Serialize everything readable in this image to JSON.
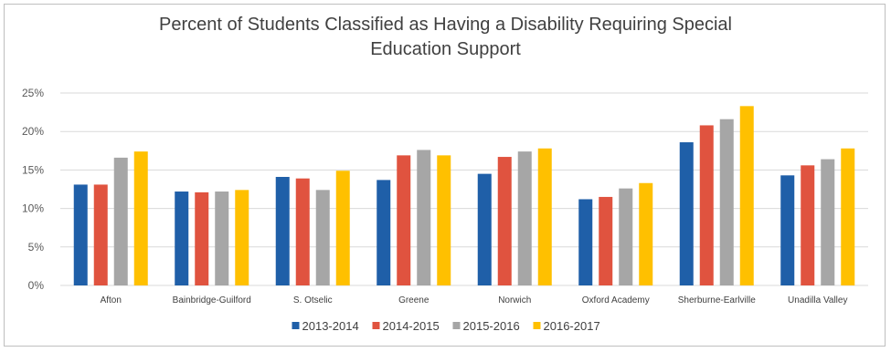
{
  "chart_data": {
    "type": "bar",
    "title_line1": "Percent of Students Classified as Having a Disability Requiring Special",
    "title_line2": "Education Support",
    "categories": [
      "Afton",
      "Bainbridge-Guilford",
      "S. Otselic",
      "Greene",
      "Norwich",
      "Oxford Academy",
      "Sherburne-Earlville",
      "Unadilla Valley"
    ],
    "series": [
      {
        "name": "2013-2014",
        "color": "#1f5fa8",
        "values": [
          13.1,
          12.2,
          14.1,
          13.7,
          14.5,
          11.2,
          18.6,
          14.3
        ]
      },
      {
        "name": "2014-2015",
        "color": "#e0533f",
        "values": [
          13.1,
          12.1,
          13.9,
          16.9,
          16.7,
          11.5,
          20.8,
          15.6
        ]
      },
      {
        "name": "2015-2016",
        "color": "#a6a6a6",
        "values": [
          16.6,
          12.2,
          12.4,
          17.6,
          17.4,
          12.6,
          21.6,
          16.4
        ]
      },
      {
        "name": "2016-2017",
        "color": "#ffc000",
        "values": [
          17.4,
          12.4,
          14.9,
          16.9,
          17.8,
          13.3,
          23.3,
          17.8
        ]
      }
    ],
    "yticks": [
      "0%",
      "5%",
      "10%",
      "15%",
      "20%",
      "25%"
    ],
    "ylim": [
      0,
      25
    ],
    "grid": true,
    "legend_position": "bottom"
  }
}
